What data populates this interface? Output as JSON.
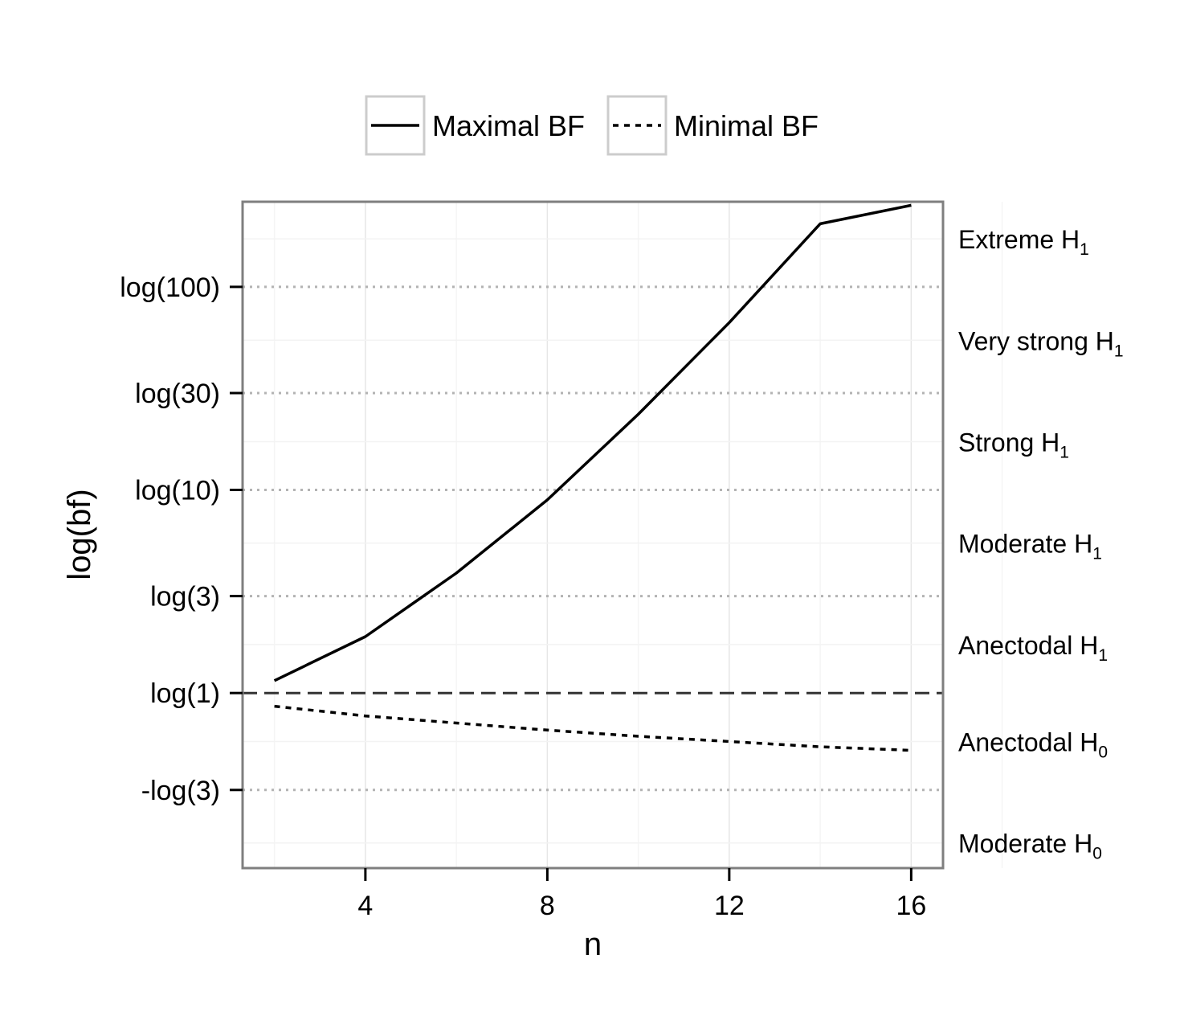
{
  "chart_data": {
    "type": "line",
    "xlabel": "n",
    "ylabel": "log(bf)",
    "xlim": [
      1.3,
      16.7
    ],
    "ylim": [
      -1.985,
      5.57
    ],
    "x_ticks": [
      4,
      8,
      12,
      16
    ],
    "y_ticks": [
      {
        "label": "log(100)",
        "value": 4.605
      },
      {
        "label": "log(30)",
        "value": 3.401
      },
      {
        "label": "log(10)",
        "value": 2.303
      },
      {
        "label": "log(3)",
        "value": 1.099
      },
      {
        "label": "log(1)",
        "value": 0
      },
      {
        "label": "-log(3)",
        "value": -1.099
      }
    ],
    "reference_line": {
      "value": 0,
      "style": "dashed"
    },
    "threshold_lines_style": "dotted",
    "legend_position": "top",
    "grid": true,
    "series": [
      {
        "name": "Maximal BF",
        "style": "solid",
        "x": [
          2,
          4,
          6,
          8,
          10,
          12,
          14,
          16
        ],
        "y": [
          0.14,
          0.64,
          1.36,
          2.19,
          3.16,
          4.2,
          5.32,
          5.53
        ]
      },
      {
        "name": "Minimal BF",
        "style": "dotted",
        "x": [
          2,
          4,
          6,
          8,
          10,
          12,
          14,
          16
        ],
        "y": [
          -0.15,
          -0.26,
          -0.34,
          -0.42,
          -0.49,
          -0.55,
          -0.61,
          -0.65
        ]
      }
    ],
    "region_labels": [
      {
        "main": "Extreme H",
        "sub": "1",
        "y": 5.15
      },
      {
        "main": "Very strong H",
        "sub": "1",
        "y": 4.0
      },
      {
        "main": "Strong H",
        "sub": "1",
        "y": 2.85
      },
      {
        "main": "Moderate H",
        "sub": "1",
        "y": 1.7
      },
      {
        "main": "Anectodal H",
        "sub": "1",
        "y": 0.55
      },
      {
        "main": "Anectodal H",
        "sub": "0",
        "y": -0.55
      },
      {
        "main": "Moderate H",
        "sub": "0",
        "y": -1.7
      }
    ]
  }
}
